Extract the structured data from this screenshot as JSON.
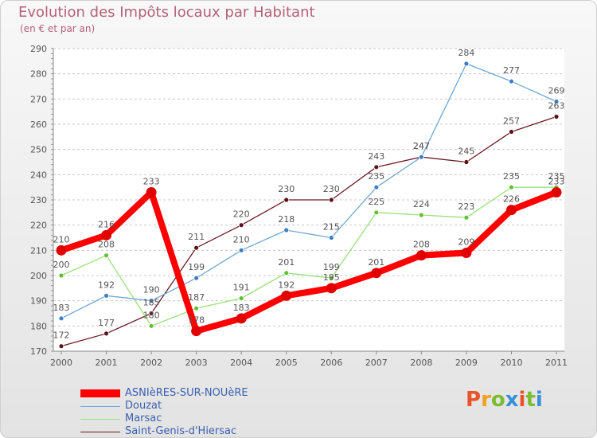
{
  "title": "Evolution des Impôts locaux par Habitant",
  "subtitle": "(en € et par an)",
  "logo": {
    "text": "Proxiti",
    "colors": [
      "#e8542a",
      "#f2a01f",
      "#7cbd2f",
      "#3a8fd9",
      "#e8542a",
      "#7cbd2f",
      "#3a8fd9"
    ]
  },
  "chart_data": {
    "type": "line",
    "title": "Evolution des Impôts locaux par Habitant",
    "ylabel": "(en € et par an)",
    "xlabel": "",
    "x": [
      "2000",
      "2001",
      "2002",
      "2003",
      "2004",
      "2005",
      "2006",
      "2007",
      "2008",
      "2009",
      "2010",
      "2011"
    ],
    "ylim": [
      170,
      290
    ],
    "yticks": [
      "170",
      "180",
      "190",
      "200",
      "210",
      "220",
      "230",
      "240",
      "250",
      "260",
      "270",
      "280",
      "290"
    ],
    "grid": "horizontal dashed",
    "legend": "bottom-left",
    "series": [
      {
        "name": "Saint-Genis-d'Hiersac",
        "color": "#6b1a22",
        "point_color": "#5a1218",
        "values": [
          172,
          177,
          185,
          211,
          220,
          230,
          230,
          243,
          247,
          245,
          257,
          263
        ],
        "labels": [
          "172",
          "177",
          "185",
          "211",
          "220",
          "230",
          "230",
          "243",
          "247",
          "245",
          "257",
          "263"
        ]
      },
      {
        "name": "Marsac",
        "color": "#9ae07a",
        "point_color": "#64c033",
        "values": [
          200,
          208,
          180,
          187,
          191,
          201,
          199,
          225,
          224,
          223,
          235,
          235
        ],
        "labels": [
          "200",
          "208",
          "180",
          "187",
          "191",
          "201",
          "199",
          "225",
          "224",
          "223",
          "235",
          "235"
        ]
      },
      {
        "name": "Douzat",
        "color": "#6fa6d6",
        "point_color": "#3b7fc4",
        "values": [
          183,
          192,
          190,
          199,
          210,
          218,
          215,
          235,
          247,
          284,
          277,
          269
        ],
        "labels": [
          "183",
          "192",
          "190",
          "199",
          "210",
          "218",
          "215",
          "235",
          "247",
          "284",
          "277",
          "269"
        ]
      },
      {
        "name": "ASNIèRES-SUR-NOUèRE",
        "color": "#ff0000",
        "point_color": "#e00000",
        "values": [
          210,
          216,
          233,
          178,
          183,
          192,
          195,
          201,
          208,
          209,
          226,
          233
        ],
        "labels": [
          "210",
          "216",
          "233",
          "178",
          "183",
          "192",
          "195",
          "201",
          "208",
          "209",
          "226",
          "233"
        ]
      }
    ]
  },
  "legend_items": [
    {
      "label": "ASNIèRES-SUR-NOUèRE",
      "color": "#ff0000",
      "thick": true
    },
    {
      "label": "Douzat",
      "color": "#6fa6d6",
      "thick": false
    },
    {
      "label": "Marsac",
      "color": "#9ae07a",
      "thick": false
    },
    {
      "label": "Saint-Genis-d'Hiersac",
      "color": "#6b1a22",
      "thick": false
    }
  ]
}
